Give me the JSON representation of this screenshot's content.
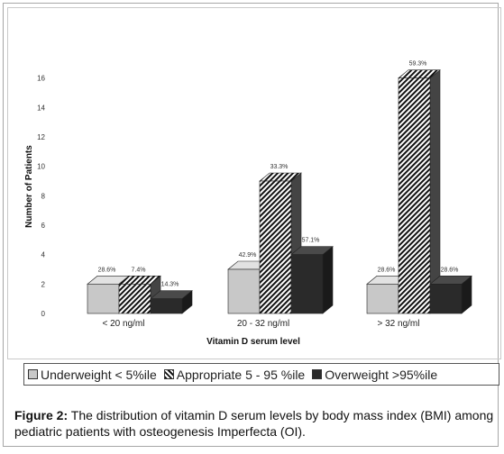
{
  "chart_data": {
    "type": "bar",
    "xlabel": "Vitamin D serum level",
    "ylabel": "Number of Patients",
    "ylim": [
      0,
      18
    ],
    "yticks": [
      "0",
      "2",
      "4",
      "6",
      "8",
      "10",
      "12",
      "14",
      "16"
    ],
    "categories": [
      "< 20 ng/ml",
      "20 - 32 ng/ml",
      "> 32 ng/ml"
    ],
    "series": [
      {
        "name": "Underweight < 5%ile",
        "values": [
          2,
          3,
          2
        ],
        "labels": [
          "28.6%",
          "42.9%",
          "28.6%"
        ]
      },
      {
        "name": "Appropriate 5 - 95 %ile",
        "values": [
          2,
          9,
          16
        ],
        "labels": [
          "7.4%",
          "33.3%",
          "59.3%"
        ]
      },
      {
        "name": "Overweight >95%ile",
        "values": [
          1,
          4,
          2
        ],
        "labels": [
          "14.3%",
          "57.1%",
          "28.6%"
        ]
      }
    ],
    "legend_position": "bottom",
    "grid": false
  },
  "colors": {
    "underweight": "#c8c8c8",
    "overweight": "#2a2a2a",
    "hatch": "#111111"
  },
  "caption": {
    "label": "Figure 2:",
    "text": " The distribution of vitamin D serum levels by body mass index (BMI) among pediatric patients with osteogenesis Imperfecta (OI)."
  }
}
